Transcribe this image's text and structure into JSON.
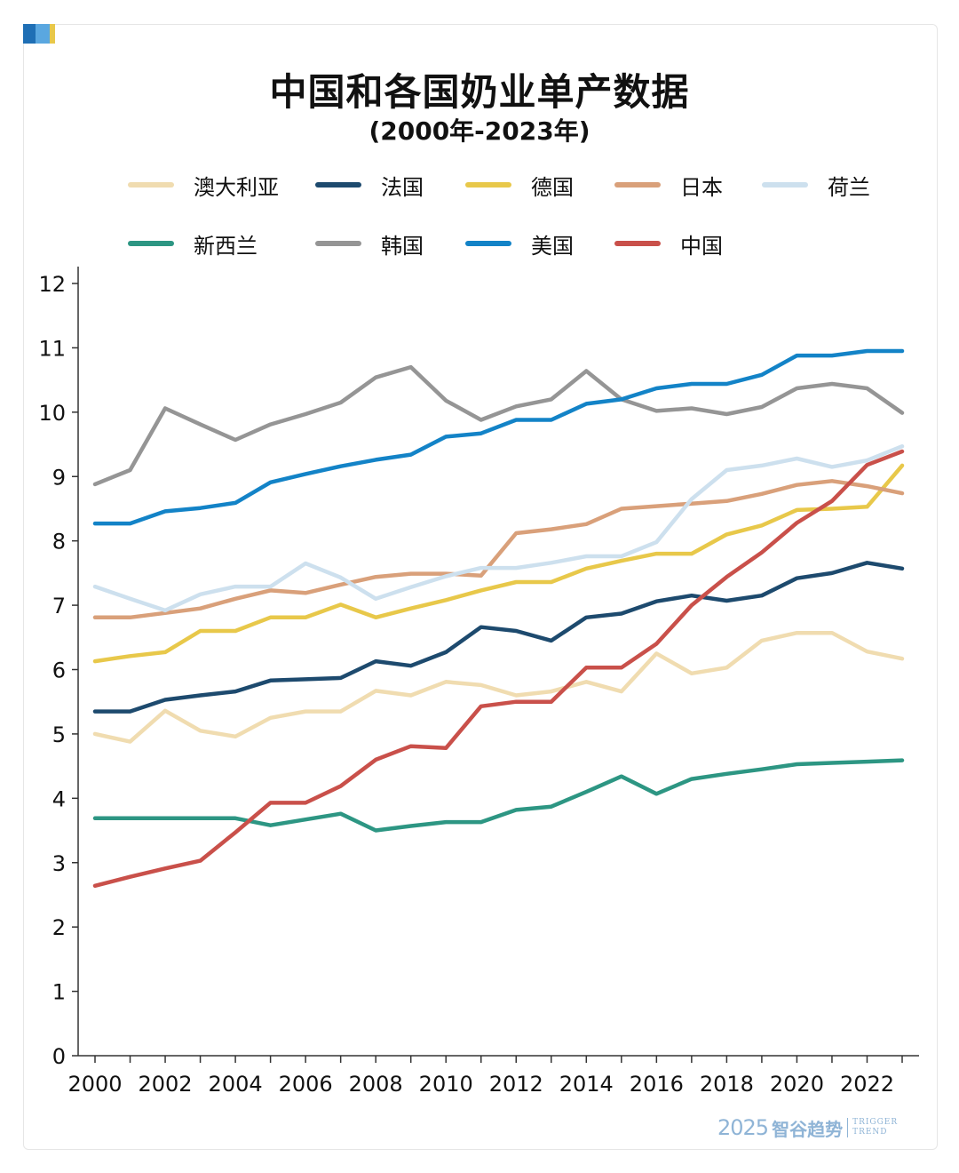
{
  "header": {
    "title": "中国和各国奶业单产数据",
    "subtitle": "(2000年-2023年)"
  },
  "accent_colors": [
    "#1f6fb5",
    "#5aa7e0",
    "#e8c84a"
  ],
  "chart_data": {
    "type": "line",
    "title": "中国和各国奶业单产数据",
    "subtitle": "(2000年-2023年)",
    "xlabel": "",
    "ylabel": "",
    "x": [
      2000,
      2001,
      2002,
      2003,
      2004,
      2005,
      2006,
      2007,
      2008,
      2009,
      2010,
      2011,
      2012,
      2013,
      2014,
      2015,
      2016,
      2017,
      2018,
      2019,
      2020,
      2021,
      2022,
      2023
    ],
    "xticks": [
      "2000",
      "2002",
      "2004",
      "2006",
      "2008",
      "2010",
      "2012",
      "2014",
      "2016",
      "2018",
      "2020",
      "2022"
    ],
    "yticks": [
      "0",
      "1",
      "2",
      "3",
      "4",
      "5",
      "6",
      "7",
      "8",
      "9",
      "10",
      "11",
      "12"
    ],
    "ylim": [
      0,
      12
    ],
    "grid": false,
    "legend_position": "top",
    "series": [
      {
        "name": "澳大利亚",
        "color": "#f0dcb0",
        "values": [
          5.0,
          4.88,
          5.36,
          5.05,
          4.96,
          5.25,
          5.35,
          5.35,
          5.67,
          5.6,
          5.81,
          5.76,
          5.6,
          5.66,
          5.81,
          5.66,
          6.25,
          5.94,
          6.03,
          6.45,
          6.57,
          6.57,
          6.28,
          6.17
        ]
      },
      {
        "name": "法国",
        "color": "#1d4a6e",
        "values": [
          5.35,
          5.35,
          5.53,
          5.6,
          5.66,
          5.83,
          5.85,
          5.87,
          6.13,
          6.06,
          6.27,
          6.66,
          6.6,
          6.45,
          6.81,
          6.87,
          7.06,
          7.15,
          7.07,
          7.15,
          7.42,
          7.5,
          7.66,
          7.57
        ]
      },
      {
        "name": "德国",
        "color": "#e8c84a",
        "values": [
          6.13,
          6.21,
          6.27,
          6.6,
          6.6,
          6.81,
          6.81,
          7.01,
          6.81,
          6.95,
          7.08,
          7.23,
          7.36,
          7.36,
          7.57,
          7.69,
          7.8,
          7.8,
          8.1,
          8.24,
          8.48,
          8.5,
          8.53,
          9.17
        ]
      },
      {
        "name": "日本",
        "color": "#d9a07a",
        "values": [
          6.81,
          6.81,
          6.88,
          6.95,
          7.1,
          7.23,
          7.19,
          7.32,
          7.44,
          7.49,
          7.49,
          7.46,
          8.12,
          8.18,
          8.26,
          8.5,
          8.54,
          8.58,
          8.62,
          8.73,
          8.87,
          8.93,
          8.85,
          8.74
        ]
      },
      {
        "name": "荷兰",
        "color": "#cde0ee",
        "values": [
          7.29,
          7.1,
          6.92,
          7.17,
          7.29,
          7.29,
          7.65,
          7.43,
          7.1,
          7.28,
          7.45,
          7.58,
          7.58,
          7.66,
          7.76,
          7.76,
          7.98,
          8.65,
          9.1,
          9.17,
          9.28,
          9.15,
          9.25,
          9.47
        ]
      },
      {
        "name": "新西兰",
        "color": "#2d9683",
        "values": [
          3.69,
          3.69,
          3.69,
          3.69,
          3.69,
          3.58,
          3.67,
          3.76,
          3.5,
          3.57,
          3.63,
          3.63,
          3.82,
          3.87,
          4.1,
          4.34,
          4.07,
          4.3,
          4.38,
          4.45,
          4.53,
          4.55,
          4.57,
          4.59
        ]
      },
      {
        "name": "韩国",
        "color": "#959595",
        "values": [
          8.88,
          9.1,
          10.06,
          9.81,
          9.57,
          9.81,
          9.97,
          10.15,
          10.54,
          10.7,
          10.18,
          9.88,
          10.09,
          10.2,
          10.64,
          10.2,
          10.02,
          10.06,
          9.97,
          10.08,
          10.37,
          10.44,
          10.37,
          9.99
        ]
      },
      {
        "name": "美国",
        "color": "#1383c7",
        "values": [
          8.27,
          8.27,
          8.46,
          8.51,
          8.59,
          8.91,
          9.04,
          9.16,
          9.26,
          9.34,
          9.62,
          9.67,
          9.88,
          9.88,
          10.13,
          10.2,
          10.37,
          10.44,
          10.44,
          10.58,
          10.88,
          10.88,
          10.95,
          10.95
        ]
      },
      {
        "name": "中国",
        "color": "#c9504a",
        "values": [
          2.64,
          2.78,
          2.91,
          3.03,
          3.47,
          3.93,
          3.93,
          4.19,
          4.6,
          4.81,
          4.78,
          5.43,
          5.5,
          5.5,
          6.03,
          6.03,
          6.4,
          7.0,
          7.44,
          7.82,
          8.28,
          8.62,
          9.18,
          9.39
        ]
      }
    ]
  },
  "watermark": {
    "year": "2025",
    "brand": "智谷趋势",
    "en_line1": "TRIGGER",
    "en_line2": "TREND"
  }
}
